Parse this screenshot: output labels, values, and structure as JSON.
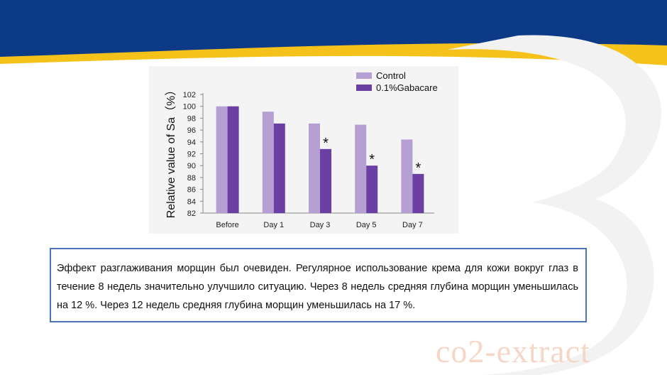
{
  "colors": {
    "header_blue": "#0d3a87",
    "header_yellow": "#f4c21b",
    "control": "#b59fd3",
    "gabacare": "#6b3fa3",
    "text_box_border": "#4c74b8"
  },
  "chart_data": {
    "type": "bar",
    "categories": [
      "Before",
      "Day 1",
      "Day 3",
      "Day 5",
      "Day 7"
    ],
    "series": [
      {
        "name": "Control",
        "values": [
          100,
          99.1,
          97.1,
          96.9,
          94.4
        ]
      },
      {
        "name": "0.1%Gabacare",
        "values": [
          100,
          97.1,
          92.8,
          90.0,
          88.6
        ]
      }
    ],
    "significance_marks": [
      "",
      "",
      "*",
      "*",
      "*"
    ],
    "ylabel": "Relative value of Sa（%）",
    "yticks": [
      82,
      84,
      86,
      88,
      90,
      92,
      94,
      96,
      98,
      100,
      102
    ],
    "ylim": [
      82,
      102
    ],
    "grid": false,
    "legend_position": "top-right"
  },
  "description": "Эффект разглаживания морщин был очевиден. Регулярное использование крема для кожи вокруг глаз в течение 8 недель значительно улучшило ситуацию. Через 8 недель средняя глубина морщин уменьшилась на 12 %.  Через 12 недель средняя глубина морщин уменьшилась на 17 %.",
  "watermark": "co2-extract"
}
